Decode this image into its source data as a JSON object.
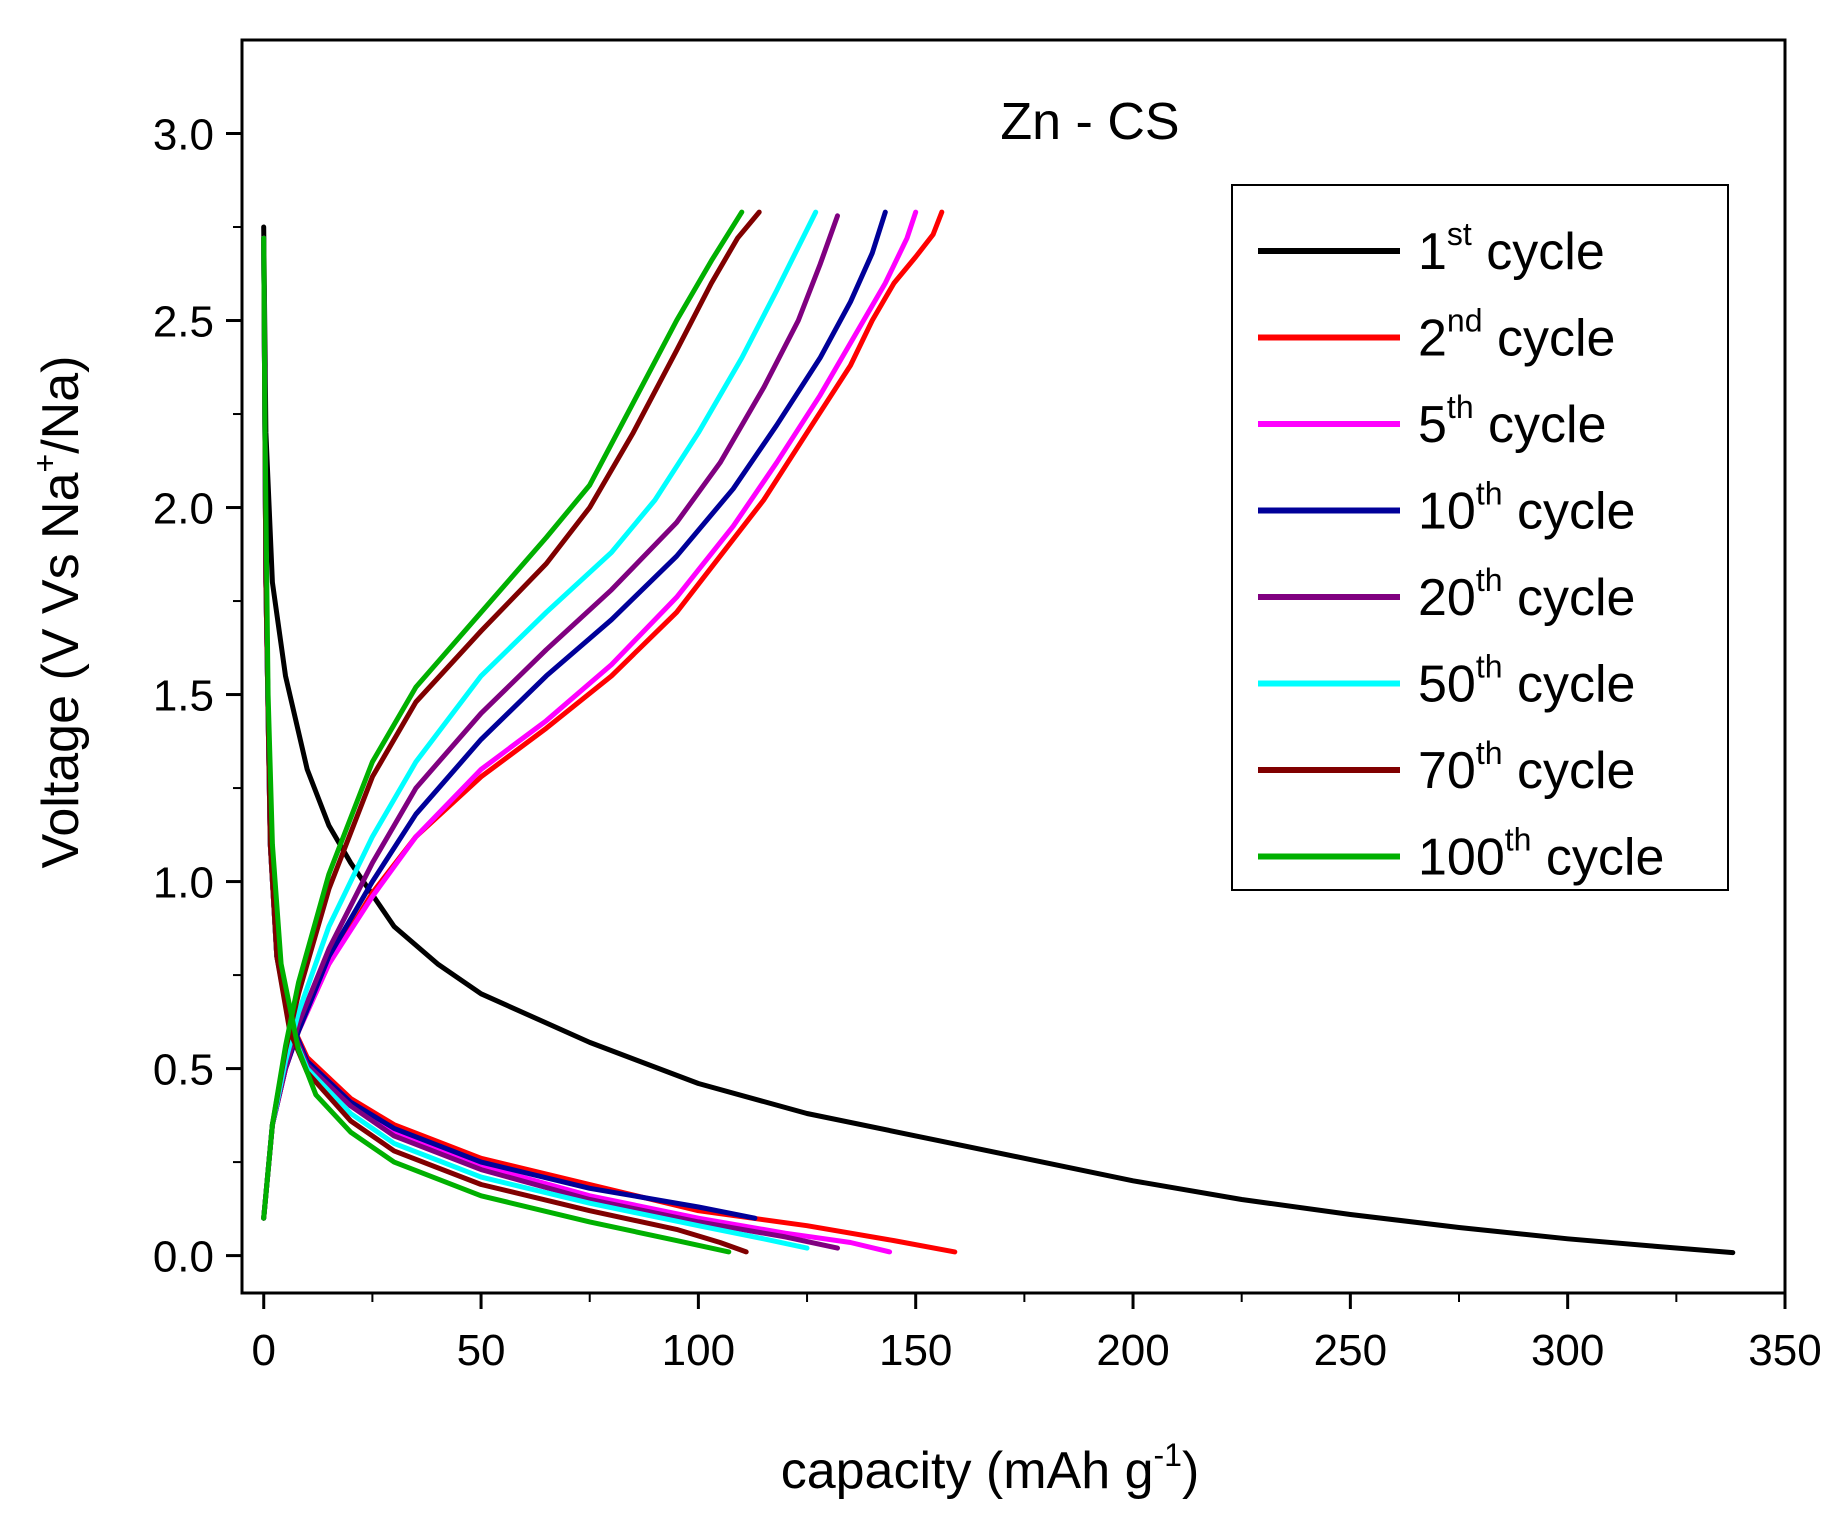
{
  "chart_data": {
    "type": "line",
    "title": "Zn - CS",
    "xlabel": "capacity (mAh g",
    "xlabel_sup": "-1",
    "xlabel_end": ")",
    "ylabel": "Voltage (V Vs Na",
    "ylabel_sup": "+",
    "ylabel_end": "/Na)",
    "xlim": [
      -5,
      350
    ],
    "ylim": [
      -0.1,
      3.25
    ],
    "xticks": [
      "0",
      "50",
      "100",
      "150",
      "200",
      "250",
      "300",
      "350"
    ],
    "xtick_values": [
      0,
      50,
      100,
      150,
      200,
      250,
      300,
      350
    ],
    "yticks": [
      "0.0",
      "0.5",
      "1.0",
      "1.5",
      "2.0",
      "2.5",
      "3.0"
    ],
    "ytick_values": [
      0,
      0.5,
      1.0,
      1.5,
      2.0,
      2.5,
      3.0
    ],
    "legend_position": "top-right",
    "series": [
      {
        "name": "1st cycle",
        "ord": "1",
        "sup": "st",
        "word": "cycle",
        "color": "#000000",
        "segments": [
          [
            [
              0,
              2.75
            ],
            [
              0.5,
              2.2
            ],
            [
              2,
              1.8
            ],
            [
              5,
              1.55
            ],
            [
              10,
              1.3
            ],
            [
              15,
              1.15
            ],
            [
              20,
              1.05
            ],
            [
              30,
              0.88
            ],
            [
              40,
              0.78
            ],
            [
              50,
              0.7
            ],
            [
              75,
              0.57
            ],
            [
              100,
              0.46
            ],
            [
              125,
              0.38
            ],
            [
              150,
              0.32
            ],
            [
              175,
              0.26
            ],
            [
              200,
              0.2
            ],
            [
              225,
              0.15
            ],
            [
              250,
              0.11
            ],
            [
              275,
              0.075
            ],
            [
              300,
              0.045
            ],
            [
              320,
              0.025
            ],
            [
              338,
              0.008
            ]
          ]
        ]
      },
      {
        "name": "2nd cycle",
        "ord": "2",
        "sup": "nd",
        "word": "cycle",
        "color": "#ff0000",
        "segments": [
          [
            [
              0,
              2.72
            ],
            [
              0.5,
              1.8
            ],
            [
              1.5,
              1.1
            ],
            [
              3,
              0.8
            ],
            [
              6,
              0.63
            ],
            [
              10,
              0.53
            ],
            [
              20,
              0.42
            ],
            [
              30,
              0.35
            ],
            [
              50,
              0.26
            ],
            [
              75,
              0.19
            ],
            [
              100,
              0.12
            ],
            [
              125,
              0.08
            ],
            [
              145,
              0.04
            ],
            [
              159,
              0.01
            ]
          ],
          [
            [
              0,
              0.1
            ],
            [
              2,
              0.35
            ],
            [
              5,
              0.5
            ],
            [
              8,
              0.6
            ],
            [
              15,
              0.78
            ],
            [
              25,
              0.97
            ],
            [
              35,
              1.12
            ],
            [
              50,
              1.28
            ],
            [
              65,
              1.41
            ],
            [
              80,
              1.55
            ],
            [
              95,
              1.72
            ],
            [
              105,
              1.87
            ],
            [
              115,
              2.02
            ],
            [
              125,
              2.2
            ],
            [
              135,
              2.38
            ],
            [
              140,
              2.5
            ],
            [
              145,
              2.6
            ],
            [
              150,
              2.67
            ],
            [
              154,
              2.73
            ],
            [
              156,
              2.79
            ]
          ]
        ]
      },
      {
        "name": "5th cycle",
        "ord": "5",
        "sup": "th",
        "word": "cycle",
        "color": "#ff00ff",
        "segments": [
          [
            [
              0,
              2.72
            ],
            [
              0.5,
              1.8
            ],
            [
              1.5,
              1.1
            ],
            [
              3,
              0.8
            ],
            [
              6,
              0.63
            ],
            [
              10,
              0.52
            ],
            [
              20,
              0.41
            ],
            [
              30,
              0.33
            ],
            [
              50,
              0.24
            ],
            [
              75,
              0.16
            ],
            [
              100,
              0.1
            ],
            [
              120,
              0.06
            ],
            [
              135,
              0.035
            ],
            [
              144,
              0.01
            ]
          ],
          [
            [
              0,
              0.1
            ],
            [
              2,
              0.35
            ],
            [
              5,
              0.5
            ],
            [
              8,
              0.6
            ],
            [
              15,
              0.78
            ],
            [
              25,
              0.96
            ],
            [
              35,
              1.12
            ],
            [
              50,
              1.3
            ],
            [
              65,
              1.43
            ],
            [
              80,
              1.58
            ],
            [
              95,
              1.76
            ],
            [
              108,
              1.95
            ],
            [
              118,
              2.12
            ],
            [
              128,
              2.3
            ],
            [
              137,
              2.48
            ],
            [
              143,
              2.6
            ],
            [
              148,
              2.72
            ],
            [
              150,
              2.79
            ]
          ]
        ]
      },
      {
        "name": "10th cycle",
        "ord": "10",
        "sup": "th",
        "word": "cycle",
        "color": "#000099",
        "segments": [
          [
            [
              0,
              2.72
            ],
            [
              0.5,
              1.8
            ],
            [
              1.5,
              1.1
            ],
            [
              3,
              0.8
            ],
            [
              6,
              0.63
            ],
            [
              10,
              0.52
            ],
            [
              20,
              0.41
            ],
            [
              30,
              0.34
            ],
            [
              50,
              0.25
            ],
            [
              75,
              0.18
            ],
            [
              100,
              0.13
            ],
            [
              113,
              0.1
            ]
          ],
          [
            [
              0,
              0.1
            ],
            [
              2,
              0.35
            ],
            [
              5,
              0.5
            ],
            [
              8,
              0.6
            ],
            [
              15,
              0.8
            ],
            [
              25,
              1.0
            ],
            [
              35,
              1.18
            ],
            [
              50,
              1.38
            ],
            [
              65,
              1.55
            ],
            [
              80,
              1.7
            ],
            [
              95,
              1.87
            ],
            [
              108,
              2.05
            ],
            [
              118,
              2.22
            ],
            [
              128,
              2.4
            ],
            [
              135,
              2.55
            ],
            [
              140,
              2.68
            ],
            [
              143,
              2.79
            ]
          ]
        ]
      },
      {
        "name": "20th cycle",
        "ord": "20",
        "sup": "th",
        "word": "cycle",
        "color": "#800080",
        "segments": [
          [
            [
              0,
              2.72
            ],
            [
              0.5,
              1.8
            ],
            [
              1.5,
              1.1
            ],
            [
              3,
              0.8
            ],
            [
              6,
              0.62
            ],
            [
              10,
              0.51
            ],
            [
              20,
              0.4
            ],
            [
              30,
              0.32
            ],
            [
              50,
              0.23
            ],
            [
              75,
              0.15
            ],
            [
              100,
              0.09
            ],
            [
              120,
              0.05
            ],
            [
              132,
              0.02
            ]
          ],
          [
            [
              0,
              0.1
            ],
            [
              2,
              0.35
            ],
            [
              5,
              0.5
            ],
            [
              8,
              0.62
            ],
            [
              15,
              0.82
            ],
            [
              25,
              1.05
            ],
            [
              35,
              1.25
            ],
            [
              50,
              1.45
            ],
            [
              65,
              1.62
            ],
            [
              80,
              1.78
            ],
            [
              95,
              1.96
            ],
            [
              105,
              2.12
            ],
            [
              115,
              2.32
            ],
            [
              123,
              2.5
            ],
            [
              128,
              2.65
            ],
            [
              132,
              2.78
            ]
          ]
        ]
      },
      {
        "name": "50th cycle",
        "ord": "50",
        "sup": "th",
        "word": "cycle",
        "color": "#00ffff",
        "segments": [
          [
            [
              0,
              2.72
            ],
            [
              0.5,
              1.8
            ],
            [
              1.5,
              1.1
            ],
            [
              3,
              0.8
            ],
            [
              6,
              0.61
            ],
            [
              10,
              0.5
            ],
            [
              20,
              0.38
            ],
            [
              30,
              0.3
            ],
            [
              50,
              0.21
            ],
            [
              75,
              0.14
            ],
            [
              100,
              0.08
            ],
            [
              115,
              0.045
            ],
            [
              125,
              0.02
            ]
          ],
          [
            [
              0,
              0.1
            ],
            [
              2,
              0.35
            ],
            [
              5,
              0.52
            ],
            [
              8,
              0.65
            ],
            [
              15,
              0.88
            ],
            [
              25,
              1.12
            ],
            [
              35,
              1.32
            ],
            [
              50,
              1.55
            ],
            [
              65,
              1.72
            ],
            [
              80,
              1.88
            ],
            [
              90,
              2.02
            ],
            [
              100,
              2.2
            ],
            [
              110,
              2.4
            ],
            [
              118,
              2.58
            ],
            [
              124,
              2.72
            ],
            [
              127,
              2.79
            ]
          ]
        ]
      },
      {
        "name": "70th cycle",
        "ord": "70",
        "sup": "th",
        "word": "cycle",
        "color": "#800000",
        "segments": [
          [
            [
              0,
              2.72
            ],
            [
              0.5,
              1.8
            ],
            [
              1.5,
              1.1
            ],
            [
              3,
              0.8
            ],
            [
              6,
              0.6
            ],
            [
              10,
              0.49
            ],
            [
              20,
              0.36
            ],
            [
              30,
              0.28
            ],
            [
              50,
              0.19
            ],
            [
              75,
              0.12
            ],
            [
              95,
              0.07
            ],
            [
              105,
              0.035
            ],
            [
              111,
              0.01
            ]
          ],
          [
            [
              0,
              0.1
            ],
            [
              2,
              0.35
            ],
            [
              5,
              0.55
            ],
            [
              8,
              0.7
            ],
            [
              15,
              0.98
            ],
            [
              25,
              1.28
            ],
            [
              35,
              1.48
            ],
            [
              50,
              1.67
            ],
            [
              65,
              1.85
            ],
            [
              75,
              2.0
            ],
            [
              85,
              2.2
            ],
            [
              95,
              2.42
            ],
            [
              103,
              2.6
            ],
            [
              109,
              2.72
            ],
            [
              114,
              2.79
            ]
          ]
        ]
      },
      {
        "name": "100th cycle",
        "ord": "100",
        "sup": "th",
        "word": "cycle",
        "color": "#00b000",
        "segments": [
          [
            [
              0,
              2.72
            ],
            [
              0.3,
              2.2
            ],
            [
              1,
              1.5
            ],
            [
              2,
              1.1
            ],
            [
              4,
              0.78
            ],
            [
              8,
              0.55
            ],
            [
              12,
              0.43
            ],
            [
              20,
              0.33
            ],
            [
              30,
              0.25
            ],
            [
              50,
              0.16
            ],
            [
              75,
              0.09
            ],
            [
              95,
              0.04
            ],
            [
              107,
              0.01
            ]
          ],
          [
            [
              0,
              0.1
            ],
            [
              2,
              0.35
            ],
            [
              5,
              0.56
            ],
            [
              8,
              0.73
            ],
            [
              15,
              1.02
            ],
            [
              25,
              1.32
            ],
            [
              35,
              1.52
            ],
            [
              50,
              1.72
            ],
            [
              65,
              1.92
            ],
            [
              75,
              2.06
            ],
            [
              85,
              2.28
            ],
            [
              95,
              2.5
            ],
            [
              103,
              2.66
            ],
            [
              110,
              2.79
            ]
          ]
        ]
      }
    ]
  }
}
